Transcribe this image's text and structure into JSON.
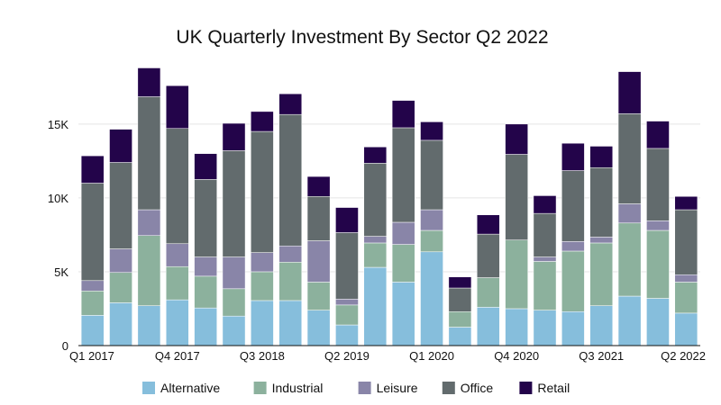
{
  "chart_data": {
    "type": "bar",
    "stacked": true,
    "title": "UK Quarterly Investment By Sector Q2 2022",
    "xlabel": "",
    "ylabel": "",
    "ylim": [
      0,
      19500
    ],
    "yticks": [
      0,
      5000,
      10000,
      15000
    ],
    "ytick_labels": [
      "0",
      "5K",
      "10K",
      "15K"
    ],
    "grid": true,
    "legend_position": "bottom",
    "categories": [
      "Q1 2017",
      "Q2 2017",
      "Q3 2017",
      "Q4 2017",
      "Q1 2018",
      "Q2 2018",
      "Q3 2018",
      "Q4 2018",
      "Q1 2019",
      "Q2 2019",
      "Q3 2019",
      "Q4 2019",
      "Q1 2020",
      "Q2 2020",
      "Q3 2020",
      "Q4 2020",
      "Q1 2021",
      "Q2 2021",
      "Q3 2021",
      "Q4 2021",
      "Q1 2022",
      "Q2 2022"
    ],
    "xtick_labels": [
      {
        "index": 0,
        "label": "Q1 2017"
      },
      {
        "index": 3,
        "label": "Q4 2017"
      },
      {
        "index": 6,
        "label": "Q3 2018"
      },
      {
        "index": 9,
        "label": "Q2 2019"
      },
      {
        "index": 12,
        "label": "Q1 2020"
      },
      {
        "index": 15,
        "label": "Q4 2020"
      },
      {
        "index": 18,
        "label": "Q3 2021"
      },
      {
        "index": 21,
        "label": "Q2 2022"
      }
    ],
    "series": [
      {
        "name": "Alternative",
        "color": "#86bedc",
        "values": [
          2050,
          2900,
          2700,
          3100,
          2550,
          2000,
          3050,
          3050,
          2400,
          1400,
          5300,
          4300,
          6350,
          1250,
          2600,
          2500,
          2400,
          2300,
          2700,
          3350,
          3200,
          2200
        ]
      },
      {
        "name": "Industrial",
        "color": "#8cb19d",
        "values": [
          1650,
          2050,
          4750,
          2250,
          2150,
          1850,
          1950,
          2600,
          1900,
          1350,
          1650,
          2550,
          1450,
          1050,
          2000,
          4650,
          3300,
          4100,
          4250,
          4950,
          4600,
          2100
        ]
      },
      {
        "name": "Leisure",
        "color": "#8985a8",
        "values": [
          700,
          1600,
          1750,
          1550,
          1300,
          2150,
          1300,
          1100,
          2800,
          400,
          450,
          1500,
          1400,
          0,
          0,
          0,
          300,
          650,
          400,
          1300,
          650,
          500
        ]
      },
      {
        "name": "Office",
        "color": "#626b6d",
        "values": [
          6600,
          5850,
          7650,
          7800,
          5250,
          7200,
          8200,
          8900,
          3000,
          4500,
          4950,
          6400,
          4700,
          1600,
          2950,
          5800,
          2950,
          4800,
          4700,
          6100,
          4900,
          4400
        ]
      },
      {
        "name": "Retail",
        "color": "#23044a",
        "values": [
          1850,
          2250,
          1950,
          2900,
          1750,
          1850,
          1350,
          1400,
          1350,
          1700,
          1100,
          1850,
          1250,
          750,
          1300,
          2050,
          1200,
          1850,
          1450,
          2850,
          1850,
          900
        ]
      }
    ]
  }
}
